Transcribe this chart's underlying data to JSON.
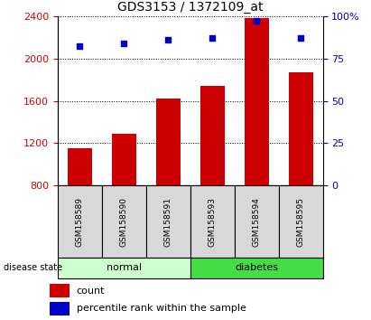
{
  "title": "GDS3153 / 1372109_at",
  "samples": [
    "GSM158589",
    "GSM158590",
    "GSM158591",
    "GSM158593",
    "GSM158594",
    "GSM158595"
  ],
  "counts": [
    1155,
    1290,
    1620,
    1740,
    2380,
    1870
  ],
  "percentile_ranks": [
    82,
    84,
    86,
    87,
    97,
    87
  ],
  "bar_color": "#cc0000",
  "dot_color": "#0000cc",
  "ylim_left": [
    800,
    2400
  ],
  "ylim_right": [
    0,
    100
  ],
  "yticks_left": [
    800,
    1200,
    1600,
    2000,
    2400
  ],
  "yticks_right": [
    0,
    25,
    50,
    75,
    100
  ],
  "right_tick_labels": [
    "0",
    "25",
    "50",
    "75",
    "100%"
  ],
  "groups": [
    {
      "label": "normal",
      "start": 0,
      "end": 3,
      "color": "#ccffcc"
    },
    {
      "label": "diabetes",
      "start": 3,
      "end": 6,
      "color": "#44dd44"
    }
  ],
  "disease_state_label": "disease state",
  "legend_count": "count",
  "legend_percentile": "percentile rank within the sample",
  "grid_color": "black",
  "left_tick_color": "#cc0000",
  "right_tick_color": "#0000cc",
  "sample_box_color": "#d8d8d8"
}
